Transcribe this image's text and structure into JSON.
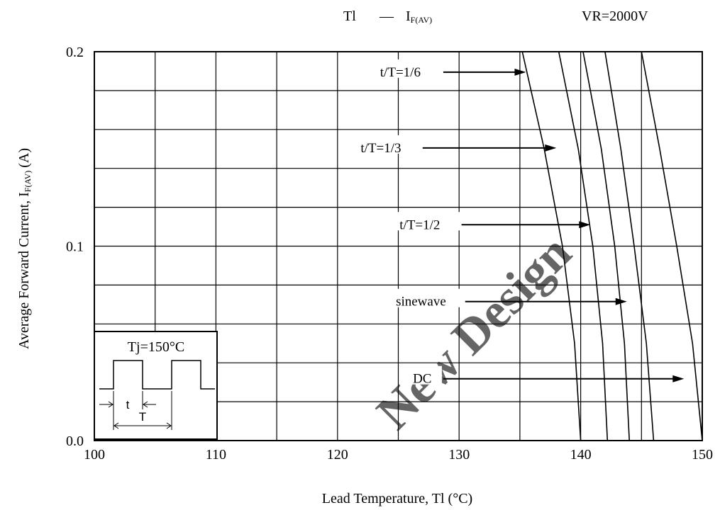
{
  "chart_data": {
    "type": "line",
    "title_main": "Tl",
    "title_dash": "—",
    "title_current": "I",
    "title_current_sub": "F(AV)",
    "condition": "VR=2000V",
    "xlabel": "Lead Temperature, Tl (°C)",
    "ylabel_main": "Average Forward Current, I",
    "ylabel_sub": "F(AV)",
    "ylabel_unit": "(A)",
    "xlim": [
      100,
      150
    ],
    "ylim": [
      0.0,
      0.2
    ],
    "x_ticks": [
      "100",
      "110",
      "120",
      "130",
      "140",
      "150"
    ],
    "x_tick_values": [
      100,
      110,
      120,
      130,
      140,
      150
    ],
    "y_ticks": [
      "0.0",
      "0.1",
      "0.2"
    ],
    "y_tick_values": [
      0.0,
      0.1,
      0.2
    ],
    "grid": true,
    "series": [
      {
        "name": "t/T=1/6",
        "x": [
          135.2,
          137.0,
          138.5,
          139.5,
          140.0
        ],
        "y": [
          0.2,
          0.15,
          0.1,
          0.05,
          0.0
        ]
      },
      {
        "name": "t/T=1/3",
        "x": [
          138.2,
          139.8,
          141.0,
          141.8,
          142.2
        ],
        "y": [
          0.2,
          0.15,
          0.1,
          0.05,
          0.0
        ]
      },
      {
        "name": "t/T=1/2",
        "x": [
          140.2,
          141.7,
          142.8,
          143.6,
          144.0
        ],
        "y": [
          0.2,
          0.15,
          0.1,
          0.05,
          0.0
        ]
      },
      {
        "name": "sinewave",
        "x": [
          142.0,
          143.3,
          144.4,
          145.4,
          146.0
        ],
        "y": [
          0.2,
          0.15,
          0.1,
          0.05,
          0.0
        ]
      },
      {
        "name": "DC",
        "x": [
          145.0,
          146.5,
          147.9,
          149.2,
          150.0
        ],
        "y": [
          0.2,
          0.15,
          0.1,
          0.05,
          0.0
        ]
      }
    ],
    "series_labels": [
      {
        "text": "t/T=1/6",
        "label_x": 123.5,
        "label_y": 0.1895,
        "arrow_from_x": 128.7,
        "arrow_to_x": 135.5
      },
      {
        "text": "t/T=1/3",
        "label_x": 121.9,
        "label_y": 0.1505,
        "arrow_from_x": 127.0,
        "arrow_to_x": 138.0
      },
      {
        "text": "t/T=1/2",
        "label_x": 125.1,
        "label_y": 0.111,
        "arrow_from_x": 130.2,
        "arrow_to_x": 140.8
      },
      {
        "text": "sinewave",
        "label_x": 124.8,
        "label_y": 0.0715,
        "arrow_from_x": 130.5,
        "arrow_to_x": 143.8
      },
      {
        "text": "DC",
        "label_x": 126.2,
        "label_y": 0.0318,
        "arrow_from_x": 128.7,
        "arrow_to_x": 148.5
      }
    ],
    "inset": {
      "label": "Tj=150°C",
      "t_label": "t",
      "T_label": "T"
    },
    "watermark": "New Design"
  }
}
